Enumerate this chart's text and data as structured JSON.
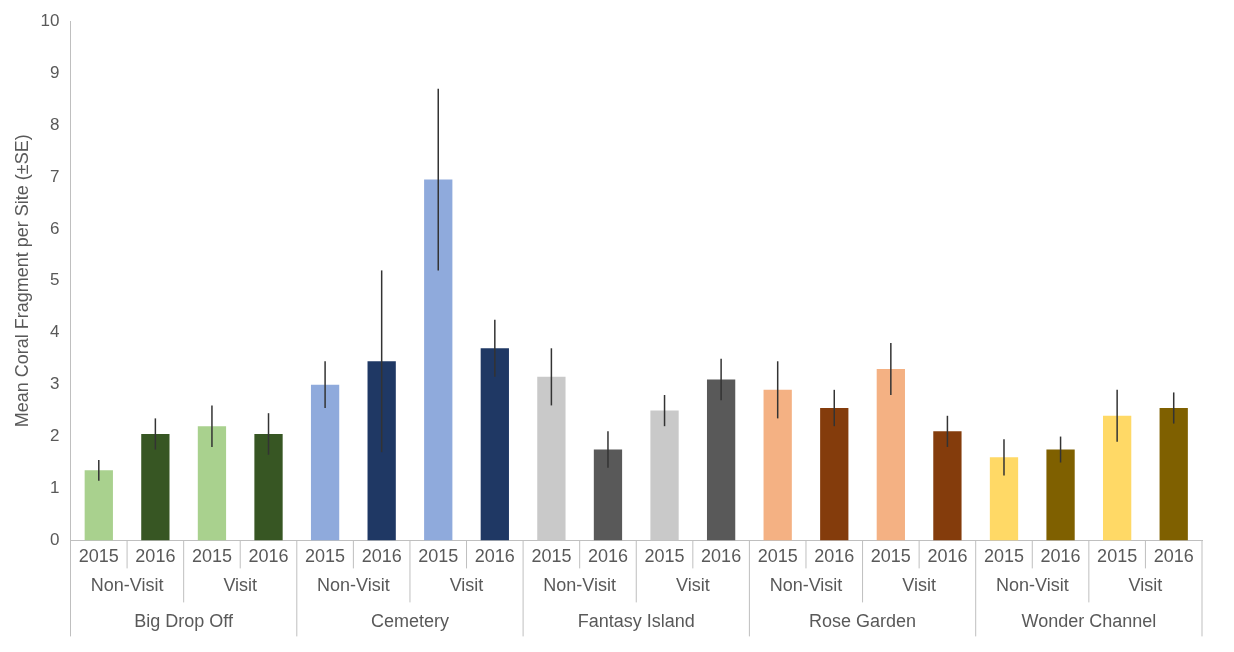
{
  "chart_data": {
    "type": "bar",
    "ylabel": "Mean Coral Fragment per Site (±SE)",
    "categories": [
      "2015",
      "2016",
      "2015",
      "2016",
      "2015",
      "2016",
      "2015",
      "2016",
      "2015",
      "2016",
      "2015",
      "2016",
      "2015",
      "2016",
      "2015",
      "2016",
      "2015",
      "2016",
      "2015",
      "2016"
    ],
    "values": [
      1.35,
      2.05,
      2.2,
      2.05,
      3.0,
      3.45,
      6.95,
      3.7,
      3.15,
      1.75,
      2.5,
      3.1,
      2.9,
      2.55,
      3.3,
      2.1,
      1.6,
      1.75,
      2.4,
      2.55
    ],
    "errors": [
      0.2,
      0.3,
      0.4,
      0.4,
      0.45,
      1.75,
      1.75,
      0.55,
      0.55,
      0.35,
      0.3,
      0.4,
      0.55,
      0.35,
      0.5,
      0.3,
      0.35,
      0.25,
      0.5,
      0.3
    ],
    "colors": [
      "#a9d18e",
      "#375623",
      "#a9d18e",
      "#375623",
      "#8faadc",
      "#1f3864",
      "#8faadc",
      "#1f3864",
      "#c9c9c9",
      "#595959",
      "#c9c9c9",
      "#595959",
      "#f4b183",
      "#843c0c",
      "#f4b183",
      "#843c0c",
      "#ffd966",
      "#7f6000",
      "#ffd966",
      "#7f6000"
    ],
    "annotations": [
      "Non-Visit",
      "Visit",
      "Non-Visit",
      "Visit",
      "Non-Visit",
      "Visit",
      "Non-Visit",
      "Visit",
      "Non-Visit",
      "Visit",
      "Big Drop Off",
      "Cemetery",
      "Fantasy Island",
      "Rose Garden",
      "Wonder Channel"
    ],
    "ylim": [
      0,
      10
    ],
    "yticks": [
      0,
      1,
      2,
      3,
      4,
      5,
      6,
      7,
      8,
      9,
      10
    ],
    "grid": false,
    "legend": false
  }
}
